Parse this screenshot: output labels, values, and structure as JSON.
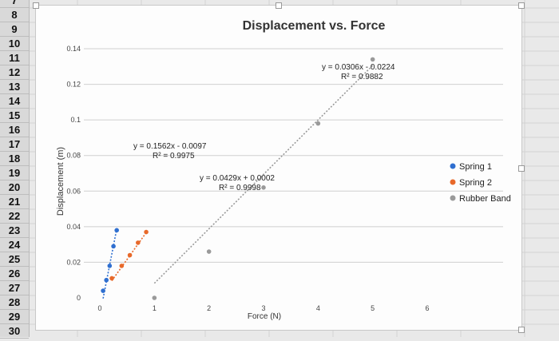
{
  "spreadsheet": {
    "row_numbers": [
      "7",
      "8",
      "9",
      "10",
      "11",
      "12",
      "13",
      "14",
      "15",
      "16",
      "17",
      "18",
      "19",
      "20",
      "21",
      "22",
      "23",
      "24",
      "25",
      "26",
      "27",
      "28",
      "29",
      "30"
    ]
  },
  "chart_data": {
    "type": "scatter",
    "title": "Displacement vs. Force",
    "xlabel": "Force (N)",
    "ylabel": "Displacement (m)",
    "xlim": [
      0,
      6
    ],
    "ylim": [
      0,
      0.14
    ],
    "xticks": [
      "0",
      "1",
      "2",
      "3",
      "4",
      "5",
      "6"
    ],
    "yticks": [
      "0",
      "0.02",
      "0.04",
      "0.06",
      "0.08",
      "0.1",
      "0.12",
      "0.14"
    ],
    "grid": "horizontal",
    "legend_position": "right",
    "series": [
      {
        "name": "Spring 1",
        "color": "#2f6fd0",
        "x": [
          0.06,
          0.12,
          0.18,
          0.25,
          0.31
        ],
        "y": [
          0.004,
          0.01,
          0.018,
          0.029,
          0.038
        ],
        "trendline": {
          "slope": 0.1562,
          "intercept": -0.0097,
          "equation": "y = 0.1562x - 0.0097",
          "r2": "R² = 0.9975"
        }
      },
      {
        "name": "Spring 2",
        "color": "#e8692a",
        "x": [
          0.22,
          0.4,
          0.55,
          0.7,
          0.85
        ],
        "y": [
          0.011,
          0.018,
          0.024,
          0.031,
          0.037
        ],
        "trendline": {
          "slope": 0.0429,
          "intercept": 0.0002,
          "equation": "y = 0.0429x + 0.0002",
          "r2": "R² = 0.9998"
        }
      },
      {
        "name": "Rubber Band",
        "color": "#9a9a9a",
        "x": [
          1.0,
          2.0,
          3.0,
          4.0,
          5.0
        ],
        "y": [
          0.0,
          0.026,
          0.062,
          0.098,
          0.134
        ],
        "trendline": {
          "slope": 0.0306,
          "intercept": -0.0224,
          "equation": "y = 0.0306x - 0.0224",
          "r2": "R² = 0.9882"
        }
      }
    ]
  }
}
